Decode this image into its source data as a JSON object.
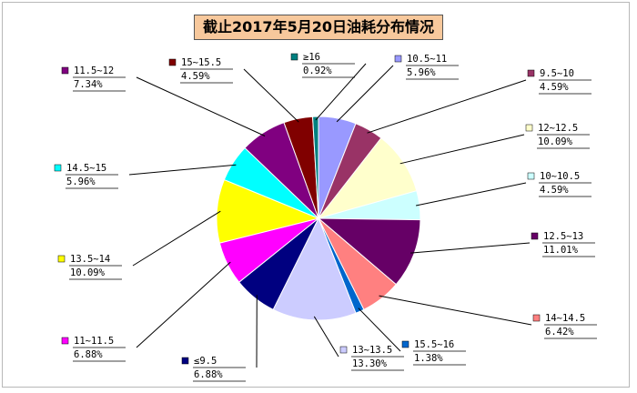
{
  "chart_data": {
    "type": "pie",
    "title": "截止2017年5月20日油耗分布情况",
    "slices": [
      {
        "name": "10.5~11",
        "value": 5.96,
        "label": "5.96%",
        "color": "#9999ff"
      },
      {
        "name": "9.5~10",
        "value": 4.59,
        "label": "4.59%",
        "color": "#993366"
      },
      {
        "name": "12~12.5",
        "value": 10.09,
        "label": "10.09%",
        "color": "#ffffcc"
      },
      {
        "name": "10~10.5",
        "value": 4.59,
        "label": "4.59%",
        "color": "#ccffff"
      },
      {
        "name": "12.5~13",
        "value": 11.01,
        "label": "11.01%",
        "color": "#660066"
      },
      {
        "name": "14~14.5",
        "value": 6.42,
        "label": "6.42%",
        "color": "#ff8080"
      },
      {
        "name": "15.5~16",
        "value": 1.38,
        "label": "1.38%",
        "color": "#0066cc"
      },
      {
        "name": "13~13.5",
        "value": 13.3,
        "label": "13.30%",
        "color": "#ccccff"
      },
      {
        "name": "≤9.5",
        "value": 6.88,
        "label": "6.88%",
        "color": "#000080"
      },
      {
        "name": "11~11.5",
        "value": 6.88,
        "label": "6.88%",
        "color": "#ff00ff"
      },
      {
        "name": "13.5~14",
        "value": 10.09,
        "label": "10.09%",
        "color": "#ffff00"
      },
      {
        "name": "14.5~15",
        "value": 5.96,
        "label": "5.96%",
        "color": "#00ffff"
      },
      {
        "name": "11.5~12",
        "value": 7.34,
        "label": "7.34%",
        "color": "#800080"
      },
      {
        "name": "15~15.5",
        "value": 4.59,
        "label": "4.59%",
        "color": "#800000"
      },
      {
        "name": "≥16",
        "value": 0.92,
        "label": "0.92%",
        "color": "#008080"
      }
    ],
    "start_angle_deg": 0,
    "direction": "clockwise",
    "labels_outside": true,
    "legend": "none"
  }
}
